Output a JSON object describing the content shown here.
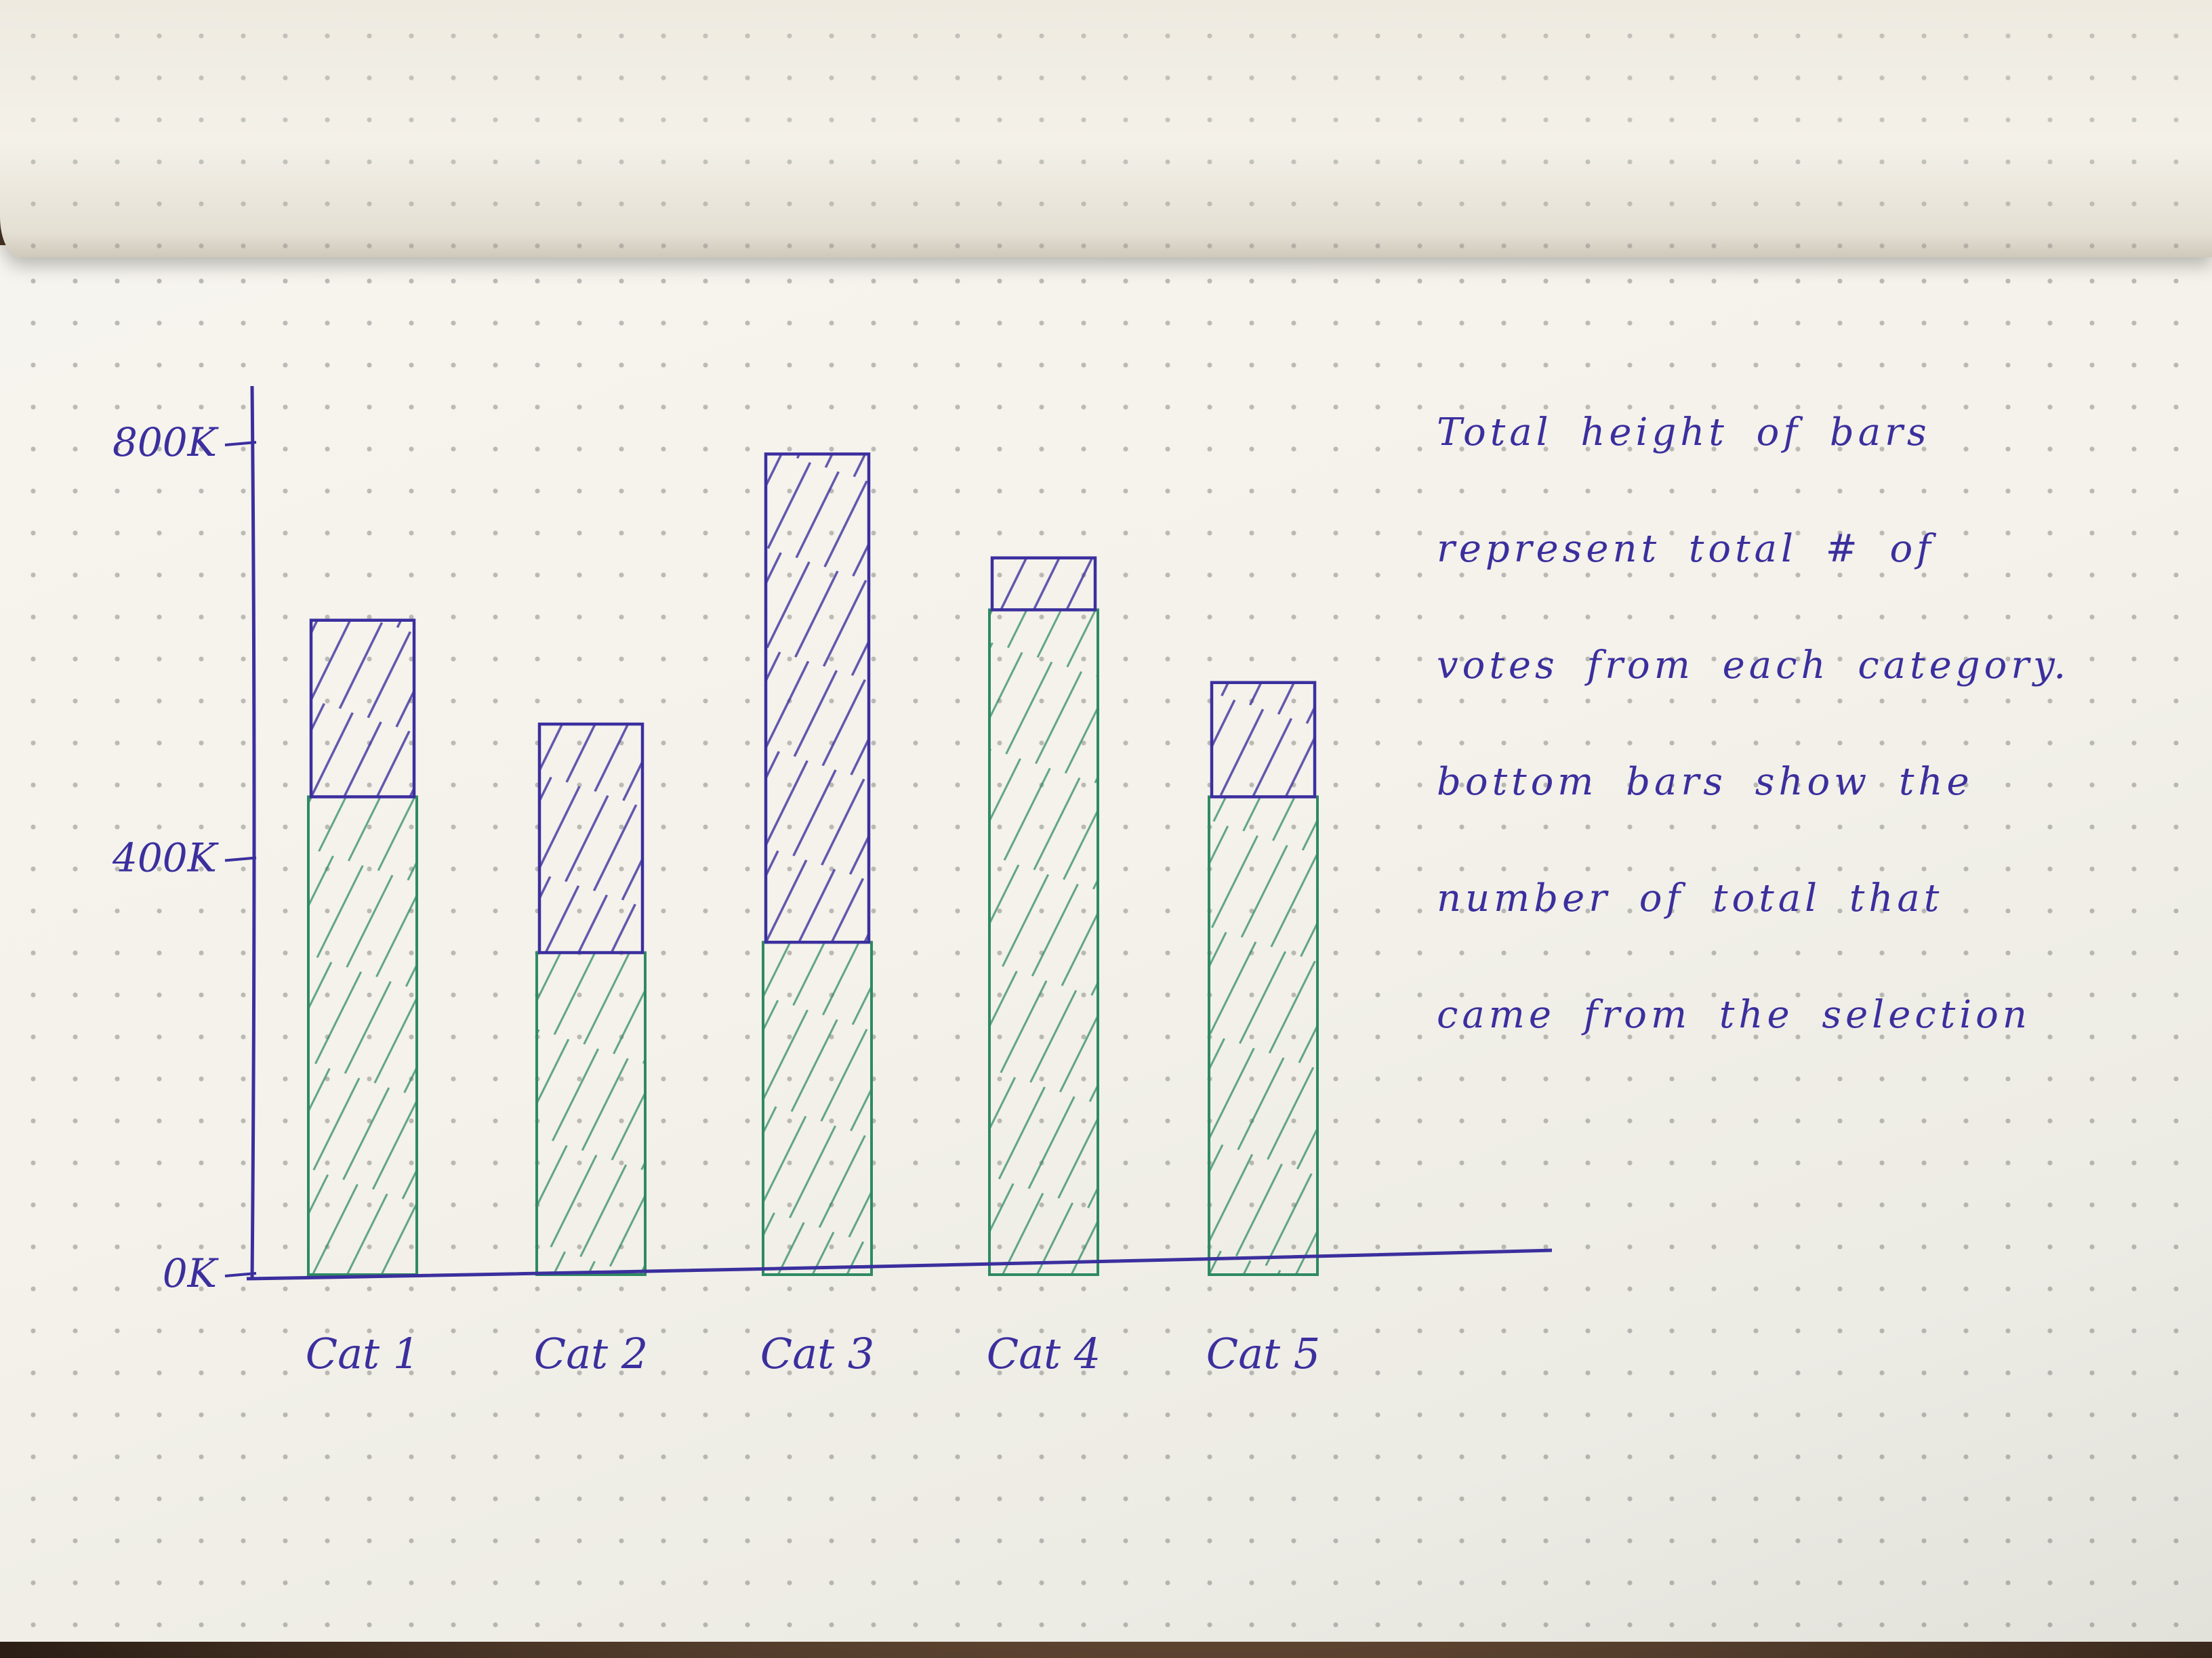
{
  "chart_data": {
    "type": "bar",
    "stacked": true,
    "categories": [
      "Cat 1",
      "Cat 2",
      "Cat 3",
      "Cat 4",
      "Cat 5"
    ],
    "series": [
      {
        "values": [
          460000,
          310000,
          320000,
          640000,
          460000
        ]
      },
      {
        "values": [
          170000,
          220000,
          470000,
          50000,
          110000
        ]
      }
    ],
    "totals": [
      630000,
      530000,
      790000,
      690000,
      570000
    ],
    "y_ticks": [
      "800K",
      "400K",
      "0K"
    ],
    "y_tick_values": [
      800000,
      400000,
      0
    ],
    "ylim": [
      0,
      800000
    ],
    "title": "",
    "xlabel": "",
    "ylabel": "",
    "grid": false,
    "legend": "none",
    "colors": {
      "bottom": "#2e8a62",
      "top": "#3b2f9e"
    }
  },
  "annotation": {
    "lines": [
      "Total height of bars",
      "represent total # of",
      "votes from each category.",
      "bottom bars show the",
      "number of total that",
      "came from the selection"
    ]
  }
}
